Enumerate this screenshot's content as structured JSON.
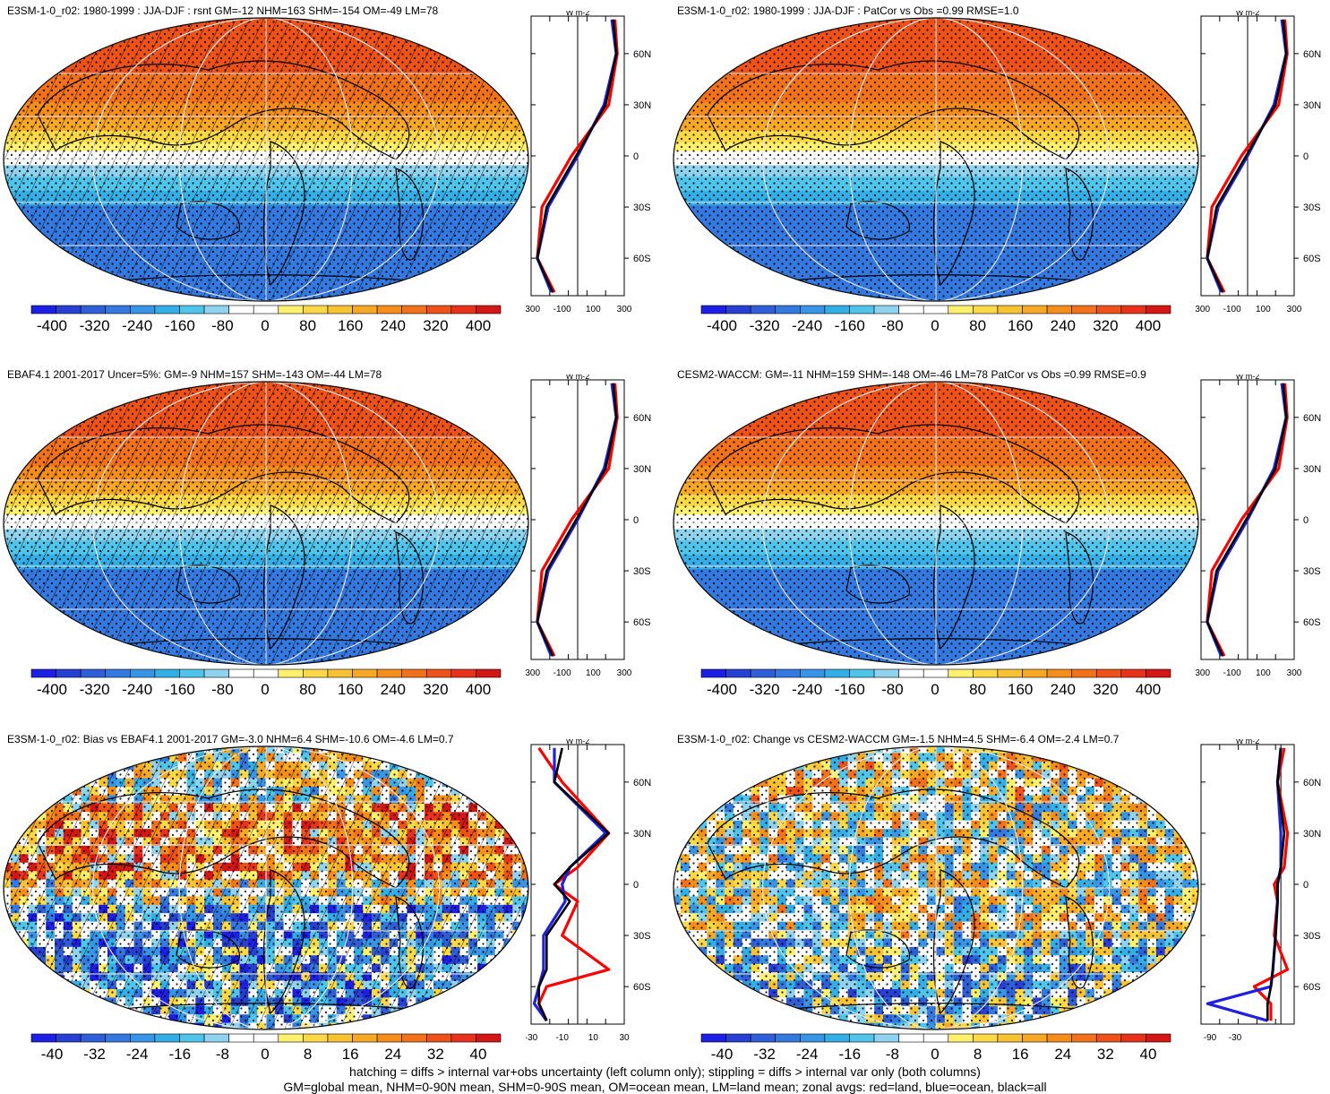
{
  "panels": [
    {
      "title": "E3SM-1-0_r02: 1980-1999 : JJA-DJF : rsnt GM=-12 NHM=163 SHM=-154 OM=-49 LM=78",
      "hatch": true,
      "zonal_xticks": [
        "-300",
        "-100",
        "100",
        "300"
      ],
      "colorbar_labels": [
        "-400",
        "-320",
        "-240",
        "-160",
        "-80",
        "0",
        "80",
        "160",
        "240",
        "320",
        "400"
      ]
    },
    {
      "title": "E3SM-1-0_r02: 1980-1999 : JJA-DJF : PatCor vs Obs =0.99 RMSE=1.0",
      "hatch": false,
      "zonal_xticks": [
        "-300",
        "-100",
        "100",
        "300"
      ],
      "colorbar_labels": [
        "-400",
        "-320",
        "-240",
        "-160",
        "-80",
        "0",
        "80",
        "160",
        "240",
        "320",
        "400"
      ]
    },
    {
      "title": "EBAF4.1 2001-2017 Uncer=5%: GM=-9 NHM=157 SHM=-143 OM=-44 LM=78",
      "hatch": true,
      "zonal_xticks": [
        "-300",
        "-100",
        "100",
        "300"
      ],
      "colorbar_labels": [
        "-400",
        "-320",
        "-240",
        "-160",
        "-80",
        "0",
        "80",
        "160",
        "240",
        "320",
        "400"
      ]
    },
    {
      "title": "CESM2-WACCM: GM=-11 NHM=159 SHM=-148 OM=-46 LM=78 PatCor vs Obs =0.99 RMSE=0.9",
      "hatch": false,
      "zonal_xticks": [
        "-300",
        "-100",
        "100",
        "300"
      ],
      "colorbar_labels": [
        "-400",
        "-320",
        "-240",
        "-160",
        "-80",
        "0",
        "80",
        "160",
        "240",
        "320",
        "400"
      ]
    },
    {
      "title": "E3SM-1-0_r02: Bias vs EBAF4.1 2001-2017 GM=-3.0 NHM=6.4 SHM=-10.6 OM=-4.6 LM=0.7",
      "hatch": true,
      "zonal_xticks": [
        "-30",
        "-10",
        "10",
        "30"
      ],
      "colorbar_labels": [
        "-40",
        "-32",
        "-24",
        "-16",
        "-8",
        "0",
        "8",
        "16",
        "24",
        "32",
        "40"
      ]
    },
    {
      "title": "E3SM-1-0_r02: Change vs CESM2-WACCM GM=-1.5 NHM=4.5 SHM=-6.4 OM=-2.4 LM=0.7",
      "hatch": false,
      "zonal_xticks": [
        "-90",
        "-30"
      ],
      "colorbar_labels": [
        "-40",
        "-32",
        "-24",
        "-16",
        "-8",
        "0",
        "8",
        "16",
        "24",
        "32",
        "40"
      ]
    }
  ],
  "zonal_unit": "W m-2",
  "lat_labels": [
    "60N",
    "30N",
    "0",
    "30S",
    "60S"
  ],
  "footer": {
    "line1": "hatching = diffs > internal var+obs uncertainty (left column only); stippling = diffs > internal var only (both columns)",
    "line2": "GM=global mean, NHM=0-90N mean, SHM=0-90S mean, OM=ocean mean, LM=land mean; zonal avgs: red=land, blue=ocean, black=all"
  },
  "colors": {
    "diverging": [
      "#1d1ee6",
      "#2740d3",
      "#2f5fd6",
      "#3379e0",
      "#3895e6",
      "#34aee6",
      "#50c5ec",
      "#8fd3ee",
      "#ffffff",
      "#ffffff",
      "#fff06e",
      "#fbd845",
      "#f9c233",
      "#f7a825",
      "#f58d1a",
      "#f2711b",
      "#ee5219",
      "#e8331a",
      "#d51616"
    ],
    "land": "#ff0000",
    "ocean": "#1f1fe0",
    "all": "#000000"
  },
  "chart_data": [
    {
      "type": "heatmap",
      "title": "E3SM-1-0_r02: 1980-1999 : JJA-DJF : rsnt GM=-12 NHM=163 SHM=-154 OM=-49 LM=78",
      "colorbar_range": [
        -400,
        400
      ],
      "zonal_xlim": [
        -300,
        300
      ],
      "latitudes": [
        80,
        60,
        30,
        0,
        -30,
        -60,
        -80
      ],
      "zonal_all": [
        230,
        250,
        180,
        -10,
        -200,
        -260,
        -160
      ],
      "zonal_land": [
        240,
        255,
        200,
        -40,
        -230,
        -260,
        -150
      ],
      "zonal_ocean": [
        220,
        248,
        170,
        0,
        -190,
        -260,
        -170
      ]
    },
    {
      "type": "heatmap",
      "title": "E3SM-1-0_r02: 1980-1999 : JJA-DJF : PatCor vs Obs =0.99 RMSE=1.0",
      "colorbar_range": [
        -400,
        400
      ],
      "zonal_xlim": [
        -300,
        300
      ],
      "latitudes": [
        80,
        60,
        30,
        0,
        -30,
        -60,
        -80
      ],
      "zonal_all": [
        230,
        250,
        180,
        -10,
        -200,
        -260,
        -160
      ],
      "zonal_land": [
        240,
        255,
        200,
        -40,
        -230,
        -260,
        -150
      ],
      "zonal_ocean": [
        220,
        248,
        170,
        0,
        -190,
        -260,
        -170
      ]
    },
    {
      "type": "heatmap",
      "title": "EBAF4.1 2001-2017 Uncer=5%: GM=-9 NHM=157 SHM=-143 OM=-44 LM=78",
      "colorbar_range": [
        -400,
        400
      ],
      "zonal_xlim": [
        -300,
        300
      ],
      "latitudes": [
        80,
        60,
        30,
        0,
        -30,
        -60,
        -80
      ],
      "zonal_all": [
        230,
        250,
        180,
        -10,
        -200,
        -260,
        -160
      ],
      "zonal_land": [
        240,
        255,
        200,
        -40,
        -230,
        -260,
        -150
      ],
      "zonal_ocean": [
        220,
        248,
        170,
        0,
        -190,
        -260,
        -170
      ]
    },
    {
      "type": "heatmap",
      "title": "CESM2-WACCM: GM=-11 NHM=159 SHM=-148 OM=-46 LM=78 PatCor vs Obs =0.99 RMSE=0.9",
      "colorbar_range": [
        -400,
        400
      ],
      "zonal_xlim": [
        -300,
        300
      ],
      "latitudes": [
        80,
        60,
        30,
        0,
        -30,
        -60,
        -80
      ],
      "zonal_all": [
        230,
        250,
        180,
        -10,
        -200,
        -260,
        -160
      ],
      "zonal_land": [
        240,
        255,
        200,
        -40,
        -230,
        -260,
        -150
      ],
      "zonal_ocean": [
        220,
        248,
        170,
        0,
        -190,
        -260,
        -170
      ]
    },
    {
      "type": "heatmap",
      "title": "E3SM-1-0_r02: Bias vs EBAF4.1 2001-2017 GM=-3.0 NHM=6.4 SHM=-10.6 OM=-4.6 LM=0.7",
      "colorbar_range": [
        -40,
        40
      ],
      "zonal_xlim": [
        -30,
        30
      ],
      "latitudes": [
        80,
        60,
        30,
        10,
        0,
        -10,
        -30,
        -50,
        -60,
        -70,
        -80
      ],
      "zonal_all": [
        -10,
        -15,
        20,
        -5,
        -15,
        -5,
        -20,
        -20,
        -25,
        -25,
        -20
      ],
      "zonal_land": [
        -25,
        -10,
        20,
        0,
        -15,
        0,
        -10,
        20,
        -20,
        -25,
        -20
      ],
      "zonal_ocean": [
        -15,
        -15,
        18,
        -5,
        -10,
        -8,
        -22,
        -22,
        -25,
        -28,
        -20
      ]
    },
    {
      "type": "heatmap",
      "title": "E3SM-1-0_r02: Change vs CESM2-WACCM GM=-1.5 NHM=4.5 SHM=-6.4 OM=-2.4 LM=0.7",
      "colorbar_range": [
        -40,
        40
      ],
      "zonal_xlim": [
        -120,
        20
      ],
      "latitudes": [
        80,
        60,
        30,
        10,
        0,
        -10,
        -30,
        -50,
        -60,
        -70,
        -80
      ],
      "zonal_all": [
        0,
        -5,
        5,
        0,
        -5,
        -5,
        -8,
        -12,
        -15,
        -20,
        -20
      ],
      "zonal_land": [
        5,
        -5,
        10,
        5,
        -10,
        -5,
        -10,
        10,
        -40,
        -15,
        -15
      ],
      "zonal_ocean": [
        0,
        -5,
        0,
        0,
        -5,
        -5,
        -8,
        -12,
        -15,
        -110,
        -20
      ]
    }
  ]
}
